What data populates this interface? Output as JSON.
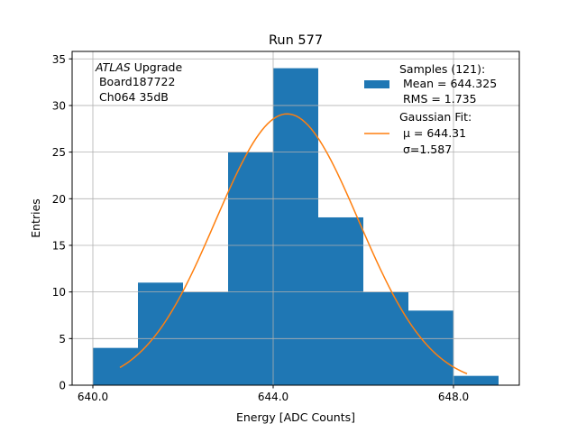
{
  "chart_data": {
    "type": "bar",
    "title": "Run 577",
    "xlabel": "Energy [ADC Counts]",
    "ylabel": "Entries",
    "xlim": [
      639.54,
      649.46
    ],
    "ylim": [
      0,
      35.8
    ],
    "xticks": [
      640.0,
      644.0,
      648.0
    ],
    "xtick_labels": [
      "640.0",
      "644.0",
      "648.0"
    ],
    "yticks": [
      0,
      5,
      10,
      15,
      20,
      25,
      30,
      35
    ],
    "ytick_labels": [
      "0",
      "5",
      "10",
      "15",
      "20",
      "25",
      "30",
      "35"
    ],
    "grid": true,
    "bin_edges": [
      640,
      641,
      642,
      643,
      644,
      645,
      646,
      647,
      648,
      649
    ],
    "values": [
      4,
      11,
      10,
      25,
      34,
      18,
      10,
      8,
      1
    ],
    "bar_color": "#1f77b4",
    "fit": {
      "name": "Gaussian Fit",
      "mu": 644.31,
      "sigma": 1.587,
      "amplitude": 29.1,
      "x_range": [
        640.6,
        648.3
      ],
      "color": "#ff7f0e"
    },
    "annotation": {
      "italic": "ATLAS",
      "line1_rest": " Upgrade",
      "line2": " Board187722",
      "line3": " Ch064 35dB"
    },
    "legend": {
      "placement": "top-right",
      "samples_lines": [
        "Samples (121):",
        " Mean = 644.325",
        " RMS = 1.735"
      ],
      "fit_lines": [
        "Gaussian Fit:",
        " μ = 644.31",
        " σ=1.587"
      ]
    }
  }
}
